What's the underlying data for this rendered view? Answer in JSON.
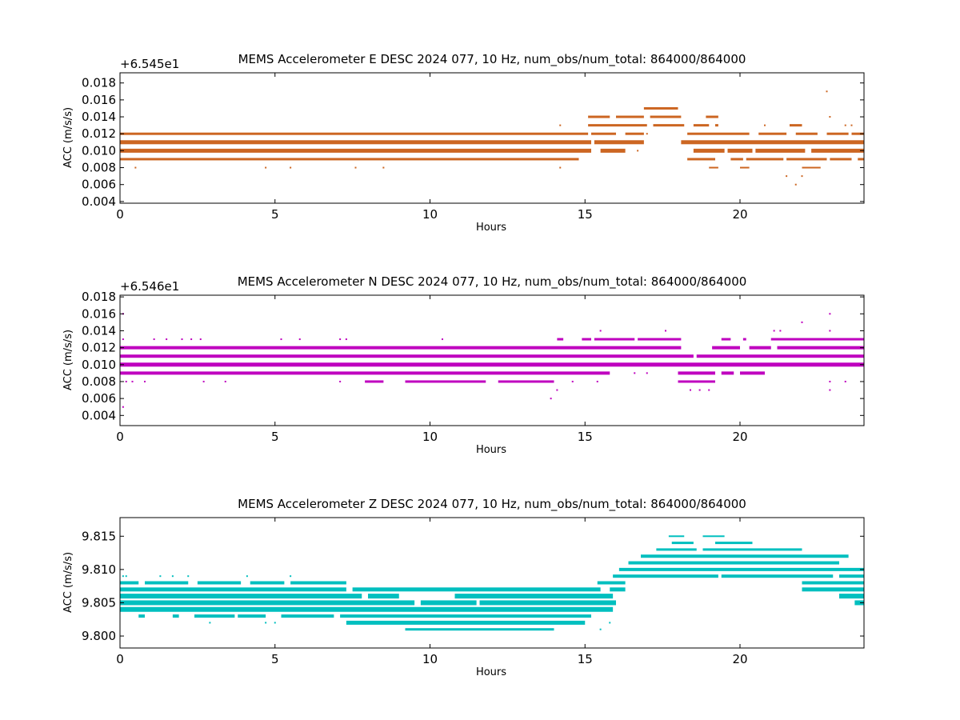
{
  "chart_data": [
    {
      "type": "scatter",
      "title": "MEMS Accelerometer E DESC 2024 077, 10 Hz, num_obs/num_total: 864000/864000",
      "xlabel": "Hours",
      "ylabel": "ACC (m/s/s)",
      "offset_label": "+6.545e1",
      "color": "#cc6622",
      "xlim": [
        0,
        24
      ],
      "ylim": [
        0.0038,
        0.0192
      ],
      "xticks": [
        0,
        5,
        10,
        15,
        20
      ],
      "xtick_labels": [
        "0",
        "5",
        "10",
        "15",
        "20"
      ],
      "yticks": [
        0.004,
        0.006,
        0.008,
        0.01,
        0.012,
        0.014,
        0.016,
        0.018
      ],
      "ytick_labels": [
        "0.004",
        "0.006",
        "0.008",
        "0.010",
        "0.012",
        "0.014",
        "0.016",
        "0.018"
      ],
      "bands": [
        {
          "y": 0.012,
          "x": [
            [
              0,
              15.1
            ],
            [
              15.2,
              16.0
            ],
            [
              16.3,
              16.9
            ],
            [
              18.3,
              20.3
            ],
            [
              20.6,
              21.5
            ],
            [
              21.8,
              22.5
            ],
            [
              22.8,
              23.5
            ],
            [
              23.6,
              24
            ]
          ],
          "w": 3
        },
        {
          "y": 0.011,
          "x": [
            [
              0,
              15.2
            ],
            [
              15.3,
              16.9
            ],
            [
              18.1,
              24
            ]
          ],
          "w": 5
        },
        {
          "y": 0.01,
          "x": [
            [
              0,
              15.2
            ],
            [
              15.5,
              16.3
            ],
            [
              18.5,
              19.5
            ],
            [
              19.6,
              20.4
            ],
            [
              20.5,
              22.1
            ],
            [
              22.3,
              24
            ]
          ],
          "w": 5
        },
        {
          "y": 0.009,
          "x": [
            [
              0,
              14.8
            ],
            [
              18.3,
              19.2
            ],
            [
              19.7,
              20.1
            ],
            [
              20.2,
              21.4
            ],
            [
              21.5,
              22.8
            ],
            [
              22.9,
              23.6
            ],
            [
              23.8,
              24
            ]
          ],
          "w": 3
        },
        {
          "y": 0.013,
          "x": [
            [
              15.1,
              17.0
            ],
            [
              17.2,
              18.2
            ],
            [
              18.5,
              19.0
            ],
            [
              19.2,
              19.3
            ],
            [
              21.6,
              22.0
            ]
          ],
          "w": 3
        },
        {
          "y": 0.014,
          "x": [
            [
              15.1,
              15.8
            ],
            [
              16.0,
              16.9
            ],
            [
              17.1,
              18.1
            ],
            [
              18.9,
              19.3
            ]
          ],
          "w": 3
        },
        {
          "y": 0.015,
          "x": [
            [
              16.9,
              18.0
            ]
          ],
          "w": 3
        },
        {
          "y": 0.008,
          "x": [
            [
              19.0,
              19.3
            ],
            [
              20.0,
              20.3
            ],
            [
              22.0,
              22.6
            ]
          ],
          "w": 2
        }
      ],
      "points": [
        [
          0.5,
          0.008
        ],
        [
          4.7,
          0.008
        ],
        [
          5.5,
          0.008
        ],
        [
          7.6,
          0.008
        ],
        [
          8.5,
          0.008
        ],
        [
          14.2,
          0.008
        ],
        [
          14.2,
          0.013
        ],
        [
          16.7,
          0.01
        ],
        [
          21.5,
          0.007
        ],
        [
          22.0,
          0.007
        ],
        [
          21.8,
          0.006
        ],
        [
          22.8,
          0.017
        ],
        [
          22.9,
          0.014
        ],
        [
          17.0,
          0.012
        ],
        [
          20.8,
          0.013
        ],
        [
          23.4,
          0.013
        ],
        [
          23.6,
          0.013
        ]
      ]
    },
    {
      "type": "scatter",
      "title": "MEMS Accelerometer N DESC 2024 077, 10 Hz, num_obs/num_total: 864000/864000",
      "xlabel": "Hours",
      "ylabel": "ACC (m/s/s)",
      "offset_label": "+6.546e1",
      "color": "#bf00bf",
      "xlim": [
        0,
        24
      ],
      "ylim": [
        0.0028,
        0.0182
      ],
      "xticks": [
        0,
        5,
        10,
        15,
        20
      ],
      "xtick_labels": [
        "0",
        "5",
        "10",
        "15",
        "20"
      ],
      "yticks": [
        0.004,
        0.006,
        0.008,
        0.01,
        0.012,
        0.014,
        0.016,
        0.018
      ],
      "ytick_labels": [
        "0.004",
        "0.006",
        "0.008",
        "0.010",
        "0.012",
        "0.014",
        "0.016",
        "0.018"
      ],
      "bands": [
        {
          "y": 0.012,
          "x": [
            [
              0,
              18.1
            ],
            [
              19.1,
              20.0
            ],
            [
              20.3,
              21.0
            ],
            [
              21.2,
              24
            ]
          ],
          "w": 4
        },
        {
          "y": 0.011,
          "x": [
            [
              0,
              18.5
            ],
            [
              18.6,
              24
            ]
          ],
          "w": 4
        },
        {
          "y": 0.01,
          "x": [
            [
              0,
              24
            ]
          ],
          "w": 5
        },
        {
          "y": 0.009,
          "x": [
            [
              0,
              15.8
            ],
            [
              18.0,
              19.2
            ],
            [
              19.4,
              19.8
            ],
            [
              20.0,
              20.8
            ]
          ],
          "w": 4
        },
        {
          "y": 0.013,
          "x": [
            [
              14.1,
              14.3
            ],
            [
              14.9,
              15.2
            ],
            [
              15.3,
              16.6
            ],
            [
              16.7,
              18.1
            ],
            [
              19.4,
              19.7
            ],
            [
              20.1,
              20.2
            ],
            [
              21.0,
              24
            ]
          ],
          "w": 3
        },
        {
          "y": 0.008,
          "x": [
            [
              18.0,
              19.2
            ],
            [
              7.9,
              8.5
            ],
            [
              9.2,
              11.8
            ],
            [
              12.2,
              14.0
            ]
          ],
          "w": 3
        }
      ],
      "points": [
        [
          0.1,
          0.016
        ],
        [
          0.1,
          0.005
        ],
        [
          0.1,
          0.013
        ],
        [
          1.1,
          0.013
        ],
        [
          1.5,
          0.013
        ],
        [
          2.0,
          0.013
        ],
        [
          2.3,
          0.013
        ],
        [
          2.6,
          0.013
        ],
        [
          5.2,
          0.013
        ],
        [
          5.8,
          0.013
        ],
        [
          7.1,
          0.013
        ],
        [
          7.3,
          0.013
        ],
        [
          10.4,
          0.013
        ],
        [
          0.2,
          0.008
        ],
        [
          0.4,
          0.008
        ],
        [
          0.8,
          0.008
        ],
        [
          2.7,
          0.008
        ],
        [
          3.4,
          0.008
        ],
        [
          7.1,
          0.008
        ],
        [
          13.9,
          0.006
        ],
        [
          14.1,
          0.007
        ],
        [
          15.5,
          0.014
        ],
        [
          17.6,
          0.014
        ],
        [
          18.4,
          0.007
        ],
        [
          18.7,
          0.007
        ],
        [
          19.0,
          0.007
        ],
        [
          21.1,
          0.014
        ],
        [
          21.3,
          0.014
        ],
        [
          22.0,
          0.015
        ],
        [
          22.9,
          0.016
        ],
        [
          22.9,
          0.014
        ],
        [
          22.9,
          0.007
        ],
        [
          22.9,
          0.008
        ],
        [
          23.4,
          0.008
        ],
        [
          16.6,
          0.009
        ],
        [
          17.0,
          0.009
        ],
        [
          14.6,
          0.008
        ],
        [
          15.4,
          0.008
        ]
      ]
    },
    {
      "type": "scatter",
      "title": "MEMS Accelerometer Z DESC 2024 077, 10 Hz, num_obs/num_total: 864000/864000",
      "xlabel": "Hours",
      "ylabel": "ACC (m/s/s)",
      "offset_label": "",
      "color": "#00bfbf",
      "xlim": [
        0,
        24
      ],
      "ylim": [
        9.7982,
        9.8178
      ],
      "xticks": [
        0,
        5,
        10,
        15,
        20
      ],
      "xtick_labels": [
        "0",
        "5",
        "10",
        "15",
        "20"
      ],
      "yticks": [
        9.8,
        9.805,
        9.81,
        9.815
      ],
      "ytick_labels": [
        "9.800",
        "9.805",
        "9.810",
        "9.815"
      ],
      "bands": [
        {
          "y": 9.808,
          "x": [
            [
              0,
              0.6
            ],
            [
              0.8,
              2.2
            ],
            [
              2.5,
              3.9
            ],
            [
              4.2,
              5.3
            ],
            [
              5.5,
              7.3
            ]
          ],
          "w": 4
        },
        {
          "y": 9.807,
          "x": [
            [
              0,
              7.3
            ],
            [
              7.5,
              15.5
            ],
            [
              15.8,
              16.3
            ],
            [
              22.0,
              24
            ]
          ],
          "w": 5
        },
        {
          "y": 9.806,
          "x": [
            [
              0,
              7.8
            ],
            [
              8.0,
              9.0
            ],
            [
              10.8,
              15.9
            ],
            [
              23.2,
              24
            ]
          ],
          "w": 6
        },
        {
          "y": 9.805,
          "x": [
            [
              0,
              9.5
            ],
            [
              9.7,
              11.5
            ],
            [
              11.6,
              16.0
            ],
            [
              23.7,
              24
            ]
          ],
          "w": 6
        },
        {
          "y": 9.804,
          "x": [
            [
              0,
              15.9
            ]
          ],
          "w": 6
        },
        {
          "y": 9.803,
          "x": [
            [
              0.6,
              0.8
            ],
            [
              1.7,
              1.9
            ],
            [
              2.4,
              3.7
            ],
            [
              3.8,
              4.7
            ],
            [
              5.2,
              6.9
            ],
            [
              7.1,
              15.2
            ]
          ],
          "w": 4
        },
        {
          "y": 9.802,
          "x": [
            [
              7.3,
              15.0
            ]
          ],
          "w": 5
        },
        {
          "y": 9.801,
          "x": [
            [
              9.2,
              14.0
            ]
          ],
          "w": 3
        },
        {
          "y": 9.808,
          "x": [
            [
              15.4,
              16.3
            ],
            [
              22.0,
              24
            ]
          ],
          "w": 4
        },
        {
          "y": 9.809,
          "x": [
            [
              15.9,
              19.3
            ],
            [
              19.4,
              23.0
            ],
            [
              23.2,
              24
            ]
          ],
          "w": 4
        },
        {
          "y": 9.81,
          "x": [
            [
              16.1,
              24
            ]
          ],
          "w": 4
        },
        {
          "y": 9.811,
          "x": [
            [
              16.4,
              23.2
            ]
          ],
          "w": 4
        },
        {
          "y": 9.812,
          "x": [
            [
              16.8,
              23.5
            ]
          ],
          "w": 4
        },
        {
          "y": 9.813,
          "x": [
            [
              17.3,
              18.6
            ],
            [
              18.8,
              22.0
            ]
          ],
          "w": 3
        },
        {
          "y": 9.814,
          "x": [
            [
              17.8,
              18.5
            ],
            [
              19.2,
              20.4
            ]
          ],
          "w": 3
        },
        {
          "y": 9.815,
          "x": [
            [
              17.7,
              18.2
            ],
            [
              18.8,
              19.5
            ]
          ],
          "w": 2
        }
      ],
      "points": [
        [
          0.1,
          9.809
        ],
        [
          0.2,
          9.809
        ],
        [
          1.3,
          9.809
        ],
        [
          1.7,
          9.809
        ],
        [
          2.2,
          9.809
        ],
        [
          2.9,
          9.802
        ],
        [
          4.7,
          9.802
        ],
        [
          5.0,
          9.802
        ],
        [
          4.1,
          9.809
        ],
        [
          5.5,
          9.809
        ],
        [
          6.4,
          9.803
        ],
        [
          6.7,
          9.803
        ],
        [
          15.5,
          9.801
        ],
        [
          15.8,
          9.802
        ]
      ]
    }
  ]
}
